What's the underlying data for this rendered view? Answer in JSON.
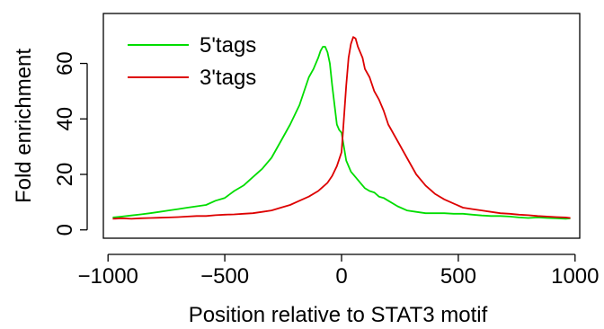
{
  "chart_data": {
    "type": "line",
    "title": "",
    "xlabel": "Position relative to STAT3 motif",
    "ylabel": "Fold enrichment",
    "xlim": [
      -1020,
      1020
    ],
    "ylim": [
      -3,
      78
    ],
    "xticks": [
      -1000,
      -500,
      0,
      500,
      1000
    ],
    "xtick_labels": [
      "−1000",
      "−500",
      "0",
      "500",
      "1000"
    ],
    "yticks": [
      0,
      20,
      40,
      60
    ],
    "ytick_labels": [
      "0",
      "20",
      "40",
      "60"
    ],
    "grid": false,
    "legend_position": "top-left",
    "series": [
      {
        "name": "5'tags",
        "color": "#00dd00",
        "x": [
          -980,
          -940,
          -900,
          -860,
          -820,
          -780,
          -740,
          -700,
          -660,
          -620,
          -580,
          -540,
          -500,
          -460,
          -420,
          -380,
          -340,
          -300,
          -260,
          -220,
          -180,
          -160,
          -140,
          -120,
          -100,
          -90,
          -80,
          -70,
          -60,
          -50,
          -40,
          -30,
          -20,
          -10,
          0,
          10,
          20,
          40,
          60,
          80,
          100,
          120,
          140,
          160,
          180,
          200,
          240,
          280,
          320,
          360,
          400,
          440,
          480,
          520,
          560,
          600,
          640,
          680,
          720,
          760,
          800,
          840,
          880,
          920,
          960,
          980
        ],
        "y": [
          4.5,
          4.8,
          5.2,
          5.6,
          6.0,
          6.5,
          7.0,
          7.5,
          8.0,
          8.5,
          9.0,
          10.5,
          11.5,
          14.0,
          16.0,
          19.0,
          22.0,
          26.0,
          32.0,
          38.0,
          45.0,
          50.0,
          55.0,
          58.0,
          62.0,
          64.5,
          66.0,
          66.0,
          64.0,
          60.0,
          52.0,
          45.0,
          38.0,
          36.0,
          35.0,
          30.0,
          25.0,
          21.0,
          19.0,
          17.0,
          15.0,
          14.0,
          13.5,
          12.0,
          11.5,
          10.5,
          8.5,
          7.0,
          6.5,
          6.0,
          6.0,
          6.0,
          5.8,
          5.8,
          5.5,
          5.2,
          5.0,
          5.0,
          4.8,
          4.5,
          4.3,
          4.5,
          4.3,
          4.2,
          4.0,
          4.2
        ]
      },
      {
        "name": "3'tags",
        "color": "#dd0000",
        "x": [
          -980,
          -940,
          -900,
          -860,
          -820,
          -780,
          -740,
          -700,
          -660,
          -620,
          -580,
          -540,
          -500,
          -460,
          -420,
          -380,
          -340,
          -300,
          -260,
          -220,
          -180,
          -140,
          -100,
          -80,
          -60,
          -40,
          -20,
          0,
          10,
          20,
          30,
          40,
          50,
          60,
          70,
          80,
          90,
          100,
          120,
          140,
          160,
          180,
          200,
          240,
          280,
          320,
          360,
          400,
          440,
          480,
          520,
          560,
          600,
          640,
          680,
          720,
          760,
          800,
          840,
          880,
          920,
          960,
          980
        ],
        "y": [
          4.0,
          4.2,
          4.0,
          4.2,
          4.3,
          4.4,
          4.5,
          4.6,
          4.8,
          5.0,
          5.0,
          5.3,
          5.5,
          5.6,
          5.8,
          6.0,
          6.5,
          7.0,
          8.0,
          9.0,
          10.5,
          12.0,
          14.0,
          15.5,
          17.0,
          19.5,
          23.0,
          28.0,
          40.0,
          52.0,
          62.0,
          67.0,
          69.5,
          69.0,
          66.0,
          64.0,
          62.0,
          58.0,
          55.0,
          50.0,
          47.0,
          43.0,
          38.0,
          32.0,
          26.0,
          20.0,
          16.0,
          13.0,
          11.0,
          9.5,
          8.0,
          7.5,
          7.0,
          6.5,
          6.0,
          5.8,
          5.5,
          5.3,
          5.0,
          4.8,
          4.6,
          4.5,
          4.3
        ]
      }
    ]
  }
}
